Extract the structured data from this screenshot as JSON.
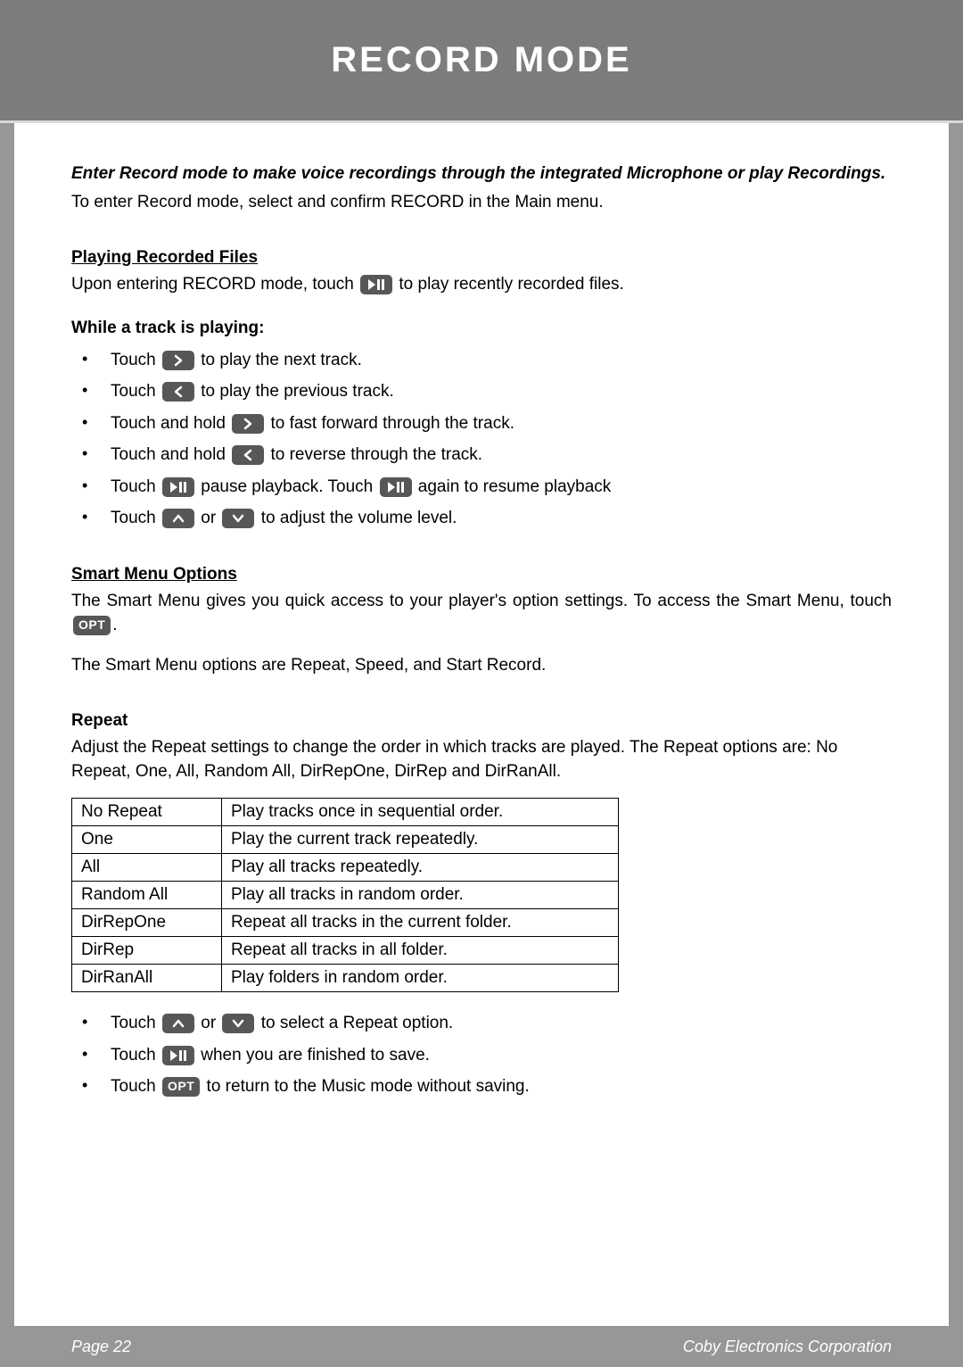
{
  "header": {
    "title": "RECORD MODE"
  },
  "intro": {
    "bold": "Enter Record mode to make voice recordings through the integrated Microphone or play Recordings.",
    "plain": "To enter Record mode, select and confirm RECORD in the Main menu."
  },
  "playing": {
    "heading": "Playing Recorded Files",
    "line1a": "Upon entering RECORD mode, touch ",
    "line1b": " to play recently recorded files.",
    "whileHeading": "While a track is playing:",
    "b1a": "Touch ",
    "b1b": " to play the next track.",
    "b2a": "Touch ",
    "b2b": " to play the previous track.",
    "b3a": "Touch and hold ",
    "b3b": " to fast forward through the track.",
    "b4a": "Touch and hold ",
    "b4b": " to reverse through the track.",
    "b5a": "Touch ",
    "b5b": " pause playback. Touch ",
    "b5c": " again to resume playback",
    "b6a": "Touch ",
    "b6b": " or ",
    "b6c": " to adjust the volume level."
  },
  "smartMenu": {
    "heading": "Smart Menu Options",
    "p1a": "The Smart Menu gives you quick access to your player's option settings. To access the Smart Menu, touch ",
    "p1b": ".",
    "p2": "The Smart Menu options are Repeat, Speed, and Start Record."
  },
  "repeat": {
    "heading": "Repeat",
    "intro": "Adjust the Repeat settings to change the order in which tracks are played. The Repeat options are: No Repeat, One, All, Random All, DirRepOne, DirRep and DirRanAll.",
    "rows": [
      {
        "name": "No Repeat",
        "desc": "Play tracks once in sequential order."
      },
      {
        "name": "One",
        "desc": "Play the current track repeatedly."
      },
      {
        "name": "All",
        "desc": "Play all tracks repeatedly."
      },
      {
        "name": "Random All",
        "desc": "Play all tracks in random order."
      },
      {
        "name": "DirRepOne",
        "desc": "Repeat all tracks in the current folder."
      },
      {
        "name": "DirRep",
        "desc": "Repeat all tracks in all folder."
      },
      {
        "name": "DirRanAll",
        "desc": "Play folders in random order."
      }
    ],
    "b1a": "Touch ",
    "b1b": " or ",
    "b1c": " to select a Repeat option.",
    "b2a": "Touch ",
    "b2b": " when you are finished to save.",
    "b3a": "Touch ",
    "b3b": " to return to the Music mode without saving."
  },
  "icons": {
    "optLabel": "OPT"
  },
  "colors": {
    "outerBg": "#97979a",
    "headerBg": "#7c7c7f",
    "headerBorder": "#d8d8da",
    "pageBg": "#ffffff",
    "btnBg": "#57575a",
    "btnFg": "#ffffff",
    "text": "#000000",
    "footerFg": "#ffffff"
  },
  "footer": {
    "left": "Page 22",
    "right": "Coby Electronics Corporation"
  }
}
